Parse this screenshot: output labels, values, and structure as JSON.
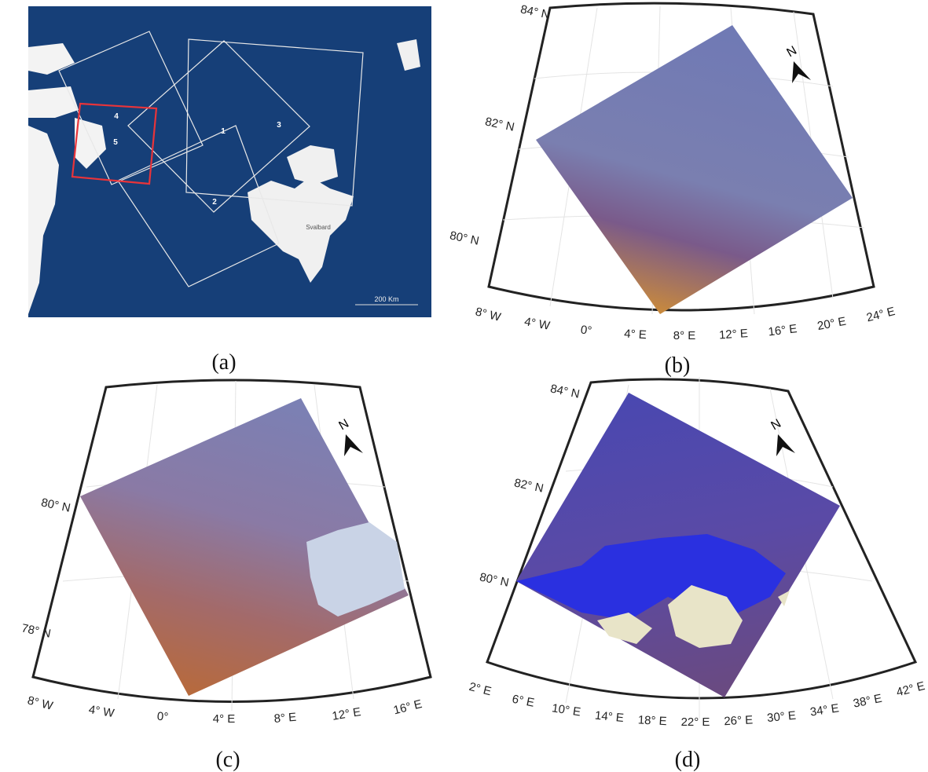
{
  "panels": [
    {
      "label": "(a)",
      "box_labels": [
        "1",
        "2",
        "3",
        "4",
        "5"
      ],
      "place": "Svalbard",
      "scale": "200 Km"
    },
    {
      "label": "(b)",
      "north": "N",
      "lat_labels": [
        "84° N",
        "82° N",
        "80° N"
      ],
      "lon_labels": [
        "8° W",
        "4° W",
        "0°",
        "4° E",
        "8° E",
        "12° E",
        "16° E",
        "20° E",
        "24° E"
      ]
    },
    {
      "label": "(c)",
      "north": "N",
      "lat_labels": [
        "80° N",
        "78° N"
      ],
      "lon_labels": [
        "8° W",
        "4° W",
        "0°",
        "4° E",
        "8° E",
        "12° E",
        "16° E"
      ]
    },
    {
      "label": "(d)",
      "north": "N",
      "lat_labels": [
        "84° N",
        "82° N",
        "80° N"
      ],
      "lon_labels": [
        "2° E",
        "6° E",
        "10° E",
        "14° E",
        "18° E",
        "22° E",
        "26° E",
        "30° E",
        "34° E",
        "38° E",
        "42° E"
      ]
    }
  ]
}
